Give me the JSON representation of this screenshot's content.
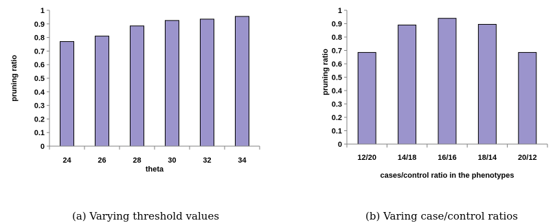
{
  "colors": {
    "bar_fill": "#9b94cc",
    "bar_stroke": "#000000",
    "axis": "#808080"
  },
  "chart_data": [
    {
      "type": "bar",
      "categories": [
        "24",
        "26",
        "28",
        "30",
        "32",
        "34"
      ],
      "values": [
        0.77,
        0.81,
        0.885,
        0.925,
        0.935,
        0.955
      ],
      "xlabel": "theta",
      "ylabel": "pruning ratio",
      "ylim": [
        0,
        1
      ],
      "yticks": [
        "0",
        "0.1",
        "0.2",
        "0.3",
        "0.4",
        "0.5",
        "0.6",
        "0.7",
        "0.8",
        "0.9",
        "1"
      ],
      "grid": false,
      "caption": "(a)  Varying threshold values"
    },
    {
      "type": "bar",
      "categories": [
        "12/20",
        "14/18",
        "16/16",
        "18/14",
        "20/12"
      ],
      "values": [
        0.685,
        0.89,
        0.94,
        0.895,
        0.685
      ],
      "xlabel": "cases/control ratio in the phenotypes",
      "ylabel": "pruning ratio",
      "ylim": [
        0,
        1
      ],
      "yticks": [
        "0",
        "0.1",
        "0.2",
        "0.3",
        "0.4",
        "0.5",
        "0.6",
        "0.7",
        "0.8",
        "0.9",
        "1"
      ],
      "grid": false,
      "caption": "(b)  Varing case/control ratios"
    }
  ]
}
